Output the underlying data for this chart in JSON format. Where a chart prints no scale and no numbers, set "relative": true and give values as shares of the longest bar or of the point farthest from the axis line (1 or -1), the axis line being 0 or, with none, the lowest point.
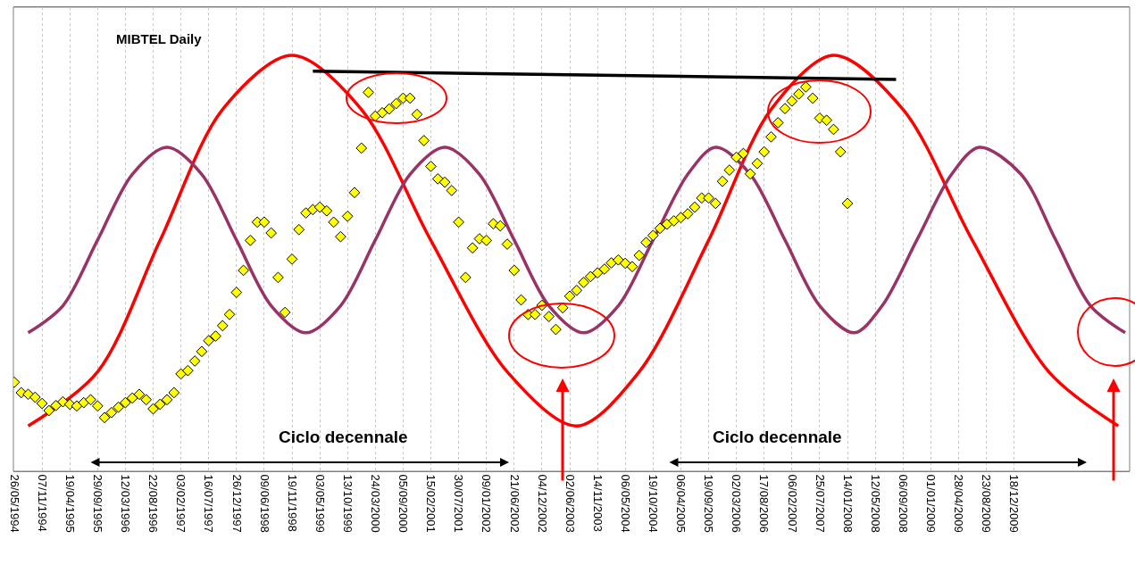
{
  "chart_data": {
    "type": "line",
    "title": "MIBTEL Daily",
    "relative": true,
    "grid": "x",
    "categories": [
      "26/05/1994",
      null,
      null,
      null,
      "07/11/1994",
      null,
      null,
      null,
      "19/04/1995",
      null,
      null,
      null,
      "29/09/1995",
      null,
      null,
      null,
      "12/03/1996",
      null,
      null,
      null,
      "22/08/1996",
      null,
      null,
      null,
      "03/02/1997",
      null,
      null,
      null,
      "16/07/1997",
      null,
      null,
      null,
      "26/12/1997",
      null,
      null,
      null,
      "09/06/1998",
      null,
      null,
      null,
      "19/11/1998",
      null,
      null,
      null,
      "03/05/1999",
      null,
      null,
      null,
      "13/10/1999",
      null,
      null,
      null,
      "24/03/2000",
      null,
      null,
      null,
      "05/09/2000",
      null,
      null,
      null,
      "15/02/2001",
      null,
      null,
      null,
      "30/07/2001",
      null,
      null,
      null,
      "09/01/2002",
      null,
      null,
      null,
      "21/06/2002",
      null,
      null,
      null,
      "04/12/2002",
      null,
      null,
      null,
      "02/06/2003",
      null,
      null,
      null,
      "14/11/2003",
      null,
      null,
      null,
      "06/05/2004",
      null,
      null,
      null,
      "19/10/2004",
      null,
      null,
      null,
      "06/04/2005",
      null,
      null,
      null,
      "19/09/2005",
      null,
      null,
      null,
      "02/03/2006",
      null,
      null,
      null,
      "17/08/2006",
      null,
      null,
      null,
      "06/02/2007",
      null,
      null,
      null,
      "25/07/2007",
      null,
      null,
      null,
      "14/01/2008",
      null,
      null,
      null,
      "12/05/2008",
      null,
      null,
      null,
      "06/09/2008",
      null,
      null,
      null,
      "01/01/2009",
      null,
      null,
      null,
      "28/04/2009",
      null,
      null,
      null,
      "23/08/2009",
      null,
      null,
      null,
      "18/12/2009",
      null,
      null,
      null,
      null,
      null,
      null,
      null,
      null,
      null,
      null,
      null,
      null,
      null,
      null,
      null,
      null
    ],
    "annotations": [
      "Ciclo decennale",
      "Ciclo decennale"
    ],
    "series": [
      {
        "color": "#ff0000",
        "values": [
          null,
          null,
          0.109,
          null,
          null,
          null,
          null,
          null,
          null,
          null,
          null,
          null,
          0.239,
          null,
          null,
          null,
          null,
          null,
          null,
          null,
          null,
          0.555,
          null,
          null,
          null,
          null,
          null,
          null,
          null,
          null,
          0.87,
          null,
          null,
          null,
          null,
          null,
          null,
          null,
          null,
          null,
          1,
          null,
          null,
          null,
          null,
          null,
          null,
          null,
          null,
          null,
          0.87,
          null,
          null,
          null,
          null,
          null,
          null,
          null,
          null,
          null,
          0.555,
          null,
          null,
          null,
          null,
          null,
          null,
          null,
          null,
          null,
          null,
          0.239,
          null,
          null,
          null,
          null,
          null,
          null,
          null,
          null,
          null,
          0.109,
          null,
          null,
          null,
          null,
          null,
          null,
          null,
          null,
          0.239,
          null,
          null,
          null,
          null,
          null,
          null,
          null,
          null,
          null,
          0.555,
          null,
          null,
          null,
          null,
          null,
          null,
          null,
          null,
          0.87,
          null,
          null,
          null,
          null,
          null,
          null,
          null,
          null,
          1,
          null,
          null,
          null,
          null,
          null,
          null,
          null,
          null,
          null,
          0.87,
          null,
          null,
          null,
          null,
          null,
          null,
          null,
          null,
          null,
          0.555,
          null,
          null,
          null,
          null,
          null,
          null,
          null,
          null,
          null,
          null,
          0.239,
          null,
          null,
          null,
          null,
          null,
          null,
          null,
          null,
          null,
          0.109,
          null
        ]
      },
      {
        "color": "#993366",
        "values": [
          null,
          null,
          0.333,
          null,
          null,
          null,
          null,
          0.398,
          null,
          null,
          null,
          null,
          0.556,
          null,
          null,
          null,
          null,
          0.714,
          null,
          null,
          null,
          null,
          0.779,
          null,
          null,
          null,
          null,
          0.714,
          null,
          null,
          null,
          null,
          0.556,
          null,
          null,
          null,
          null,
          0.398,
          null,
          null,
          null,
          null,
          0.333,
          null,
          null,
          null,
          null,
          0.398,
          null,
          null,
          null,
          null,
          0.556,
          null,
          null,
          null,
          null,
          0.714,
          null,
          null,
          null,
          null,
          0.779,
          null,
          null,
          null,
          null,
          0.714,
          null,
          null,
          null,
          null,
          0.556,
          null,
          null,
          null,
          null,
          0.398,
          null,
          null,
          null,
          null,
          0.333,
          null,
          null,
          null,
          null,
          0.398,
          null,
          null,
          null,
          null,
          0.556,
          null,
          null,
          null,
          null,
          0.714,
          null,
          null,
          null,
          0.779,
          null,
          null,
          null,
          null,
          0.714,
          null,
          null,
          null,
          null,
          0.556,
          null,
          null,
          null,
          null,
          0.398,
          null,
          null,
          null,
          null,
          0.333,
          null,
          null,
          null,
          0.398,
          null,
          null,
          null,
          null,
          0.556,
          null,
          null,
          null,
          null,
          0.714,
          null,
          null,
          null,
          0.779,
          null,
          null,
          null,
          null,
          null,
          0.714,
          null,
          null,
          null,
          null,
          0.556,
          null,
          null,
          null,
          null,
          0.398,
          null,
          null,
          null,
          null,
          0.333
        ]
      },
      {
        "color": "#000000",
        "values": [
          null,
          null,
          null,
          null,
          null,
          null,
          null,
          null,
          null,
          null,
          null,
          null,
          null,
          null,
          null,
          null,
          null,
          null,
          null,
          null,
          null,
          null,
          null,
          null,
          null,
          null,
          null,
          null,
          null,
          null,
          null,
          null,
          null,
          null,
          null,
          null,
          null,
          null,
          null,
          null,
          null,
          null,
          null,
          0.962,
          null,
          null,
          null,
          null,
          null,
          null,
          null,
          null,
          null,
          null,
          null,
          null,
          null,
          null,
          null,
          null,
          null,
          null,
          null,
          null,
          null,
          null,
          null,
          null,
          null,
          null,
          null,
          null,
          null,
          null,
          null,
          null,
          null,
          null,
          null,
          null,
          null,
          null,
          null,
          null,
          null,
          null,
          null,
          null,
          null,
          null,
          null,
          null,
          null,
          null,
          null,
          null,
          null,
          null,
          null,
          null,
          null,
          null,
          null,
          null,
          null,
          null,
          null,
          null,
          null,
          null,
          null,
          null,
          null,
          null,
          null,
          null,
          null,
          null,
          null,
          null,
          null,
          null,
          null,
          null,
          null,
          null,
          null,
          0.942,
          null,
          null,
          null,
          null,
          null,
          null,
          null,
          null,
          null,
          null,
          null,
          null,
          null,
          null,
          null,
          null,
          null,
          null,
          null,
          null,
          null,
          null,
          null,
          null,
          null,
          null,
          null,
          null,
          null,
          null,
          null,
          null,
          null
        ]
      },
      {
        "type": "scatter",
        "marker": "diamond",
        "color": "#ffff00",
        "values": [
          0.214,
          0.189,
          0.185,
          0.178,
          0.163,
          0.146,
          0.158,
          0.167,
          0.161,
          0.157,
          0.165,
          0.172,
          0.157,
          0.129,
          0.141,
          0.154,
          0.165,
          0.176,
          0.185,
          0.172,
          0.15,
          0.161,
          0.172,
          0.189,
          0.234,
          0.242,
          0.265,
          0.288,
          0.314,
          0.325,
          0.35,
          0.377,
          0.43,
          0.483,
          0.555,
          0.599,
          0.599,
          0.573,
          0.466,
          0.382,
          0.51,
          0.581,
          0.621,
          0.629,
          0.635,
          0.626,
          0.599,
          0.564,
          0.613,
          0.67,
          0.777,
          0.911,
          0.854,
          0.862,
          0.871,
          0.884,
          0.897,
          0.897,
          0.858,
          0.795,
          0.733,
          0.703,
          0.695,
          0.675,
          0.599,
          0.466,
          0.537,
          0.559,
          0.555,
          0.595,
          0.59,
          0.546,
          0.483,
          0.412,
          0.377,
          0.377,
          0.399,
          0.372,
          0.341,
          0.393,
          0.421,
          0.435,
          0.454,
          0.468,
          0.477,
          0.486,
          0.501,
          0.508,
          0.5,
          0.492,
          0.519,
          0.55,
          0.567,
          0.584,
          0.594,
          0.602,
          0.61,
          0.619,
          0.635,
          0.657,
          0.657,
          0.644,
          0.697,
          0.724,
          0.755,
          0.764,
          0.715,
          0.74,
          0.768,
          0.804,
          0.838,
          0.872,
          0.89,
          0.907,
          0.924,
          0.897,
          0.849,
          0.844,
          0.822,
          0.768,
          0.644,
          null,
          null,
          null,
          null,
          null,
          null,
          null,
          null,
          null,
          null,
          null,
          null,
          null,
          null,
          null,
          null,
          null,
          null,
          null,
          null,
          null,
          null,
          null,
          null,
          null,
          null,
          null,
          null,
          null,
          null,
          null,
          null,
          null,
          null,
          null,
          null,
          null,
          null,
          null,
          null
        ]
      }
    ]
  }
}
